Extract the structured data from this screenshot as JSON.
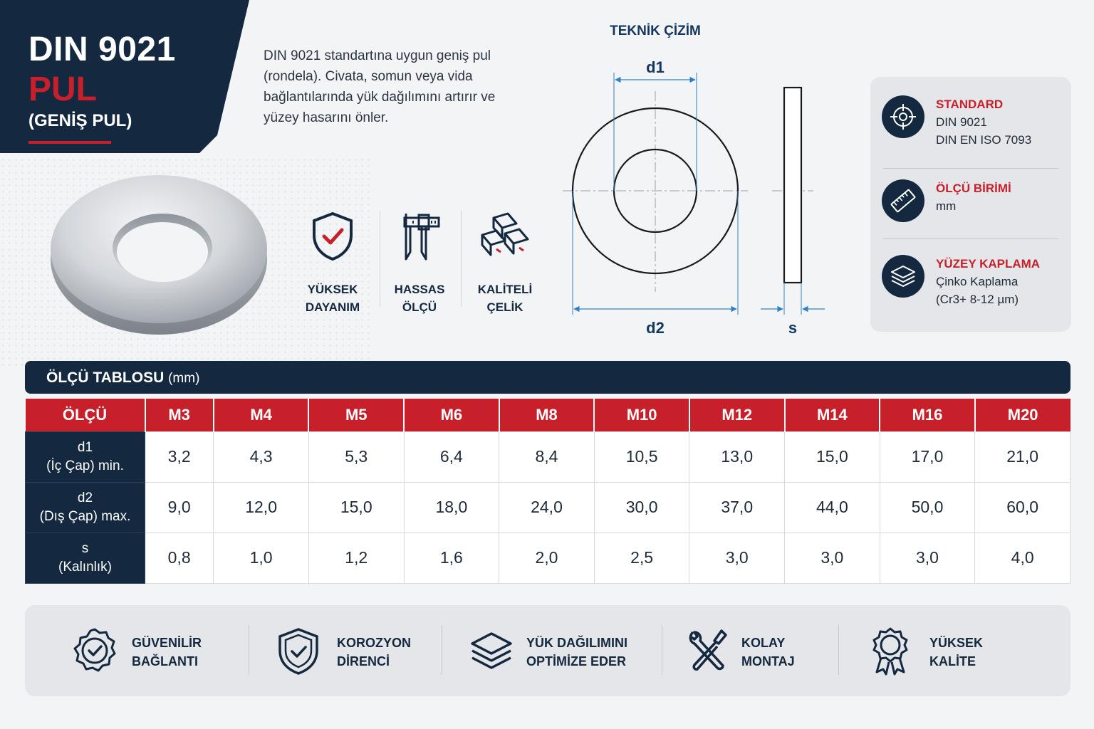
{
  "header": {
    "title": "DIN 9021",
    "subtitle": "PUL",
    "subtitle2": "(GENİŞ PUL)"
  },
  "intro": "DIN 9021 standartına uygun geniş pul (rondela). Civata, somun veya vida bağlantılarında yük dağılımını artırır ve yüzey hasarını önler.",
  "features": [
    {
      "icon": "shield-check-icon",
      "line1": "YÜKSEK",
      "line2": "DAYANIM"
    },
    {
      "icon": "caliper-icon",
      "line1": "HASSAS",
      "line2": "ÖLÇÜ"
    },
    {
      "icon": "steel-bars-icon",
      "line1": "KALİTELİ",
      "line2": "ÇELİK"
    }
  ],
  "technical": {
    "title": "TEKNİK ÇİZİM",
    "d1": "d1",
    "d2": "d2",
    "s": "s"
  },
  "info": [
    {
      "icon": "target-icon",
      "head": "STANDARD",
      "lines": [
        "DIN 9021",
        "DIN EN ISO 7093"
      ]
    },
    {
      "icon": "ruler-icon",
      "head": "ÖLÇÜ BİRİMİ",
      "lines": [
        "mm"
      ]
    },
    {
      "icon": "layers-icon",
      "head": "YÜZEY KAPLAMA",
      "lines": [
        "Çinko Kaplama",
        "(Cr3+ 8-12 µm)"
      ]
    }
  ],
  "table": {
    "title": "ÖLÇÜ TABLOSU",
    "unit": "(mm)",
    "corner": "ÖLÇÜ",
    "columns": [
      "M3",
      "M4",
      "M5",
      "M6",
      "M8",
      "M10",
      "M12",
      "M14",
      "M16",
      "M20"
    ],
    "rows": [
      {
        "label1": "d1",
        "label2": "(İç Çap) min.",
        "values": [
          "3,2",
          "4,3",
          "5,3",
          "6,4",
          "8,4",
          "10,5",
          "13,0",
          "15,0",
          "17,0",
          "21,0"
        ]
      },
      {
        "label1": "d2",
        "label2": "(Dış Çap) max.",
        "values": [
          "9,0",
          "12,0",
          "15,0",
          "18,0",
          "24,0",
          "30,0",
          "37,0",
          "44,0",
          "50,0",
          "60,0"
        ]
      },
      {
        "label1": "s",
        "label2": "(Kalınlık)",
        "values": [
          "0,8",
          "1,0",
          "1,2",
          "1,6",
          "2,0",
          "2,5",
          "3,0",
          "3,0",
          "3,0",
          "4,0"
        ]
      }
    ]
  },
  "bottom": [
    {
      "icon": "badge-check-icon",
      "line1": "GÜVENİLİR",
      "line2": "BAĞLANTI"
    },
    {
      "icon": "shield-check-icon",
      "line1": "KOROZYON",
      "line2": "DİRENCİ"
    },
    {
      "icon": "layers-icon",
      "line1": "YÜK DAĞILIMINI",
      "line2": "OPTİMİZE EDER"
    },
    {
      "icon": "tools-icon",
      "line1": "KOLAY",
      "line2": "MONTAJ"
    },
    {
      "icon": "award-icon",
      "line1": "YÜKSEK",
      "line2": "KALİTE"
    }
  ],
  "colors": {
    "navy": "#14293f",
    "red": "#c8202b",
    "blue": "#2f80c8"
  }
}
